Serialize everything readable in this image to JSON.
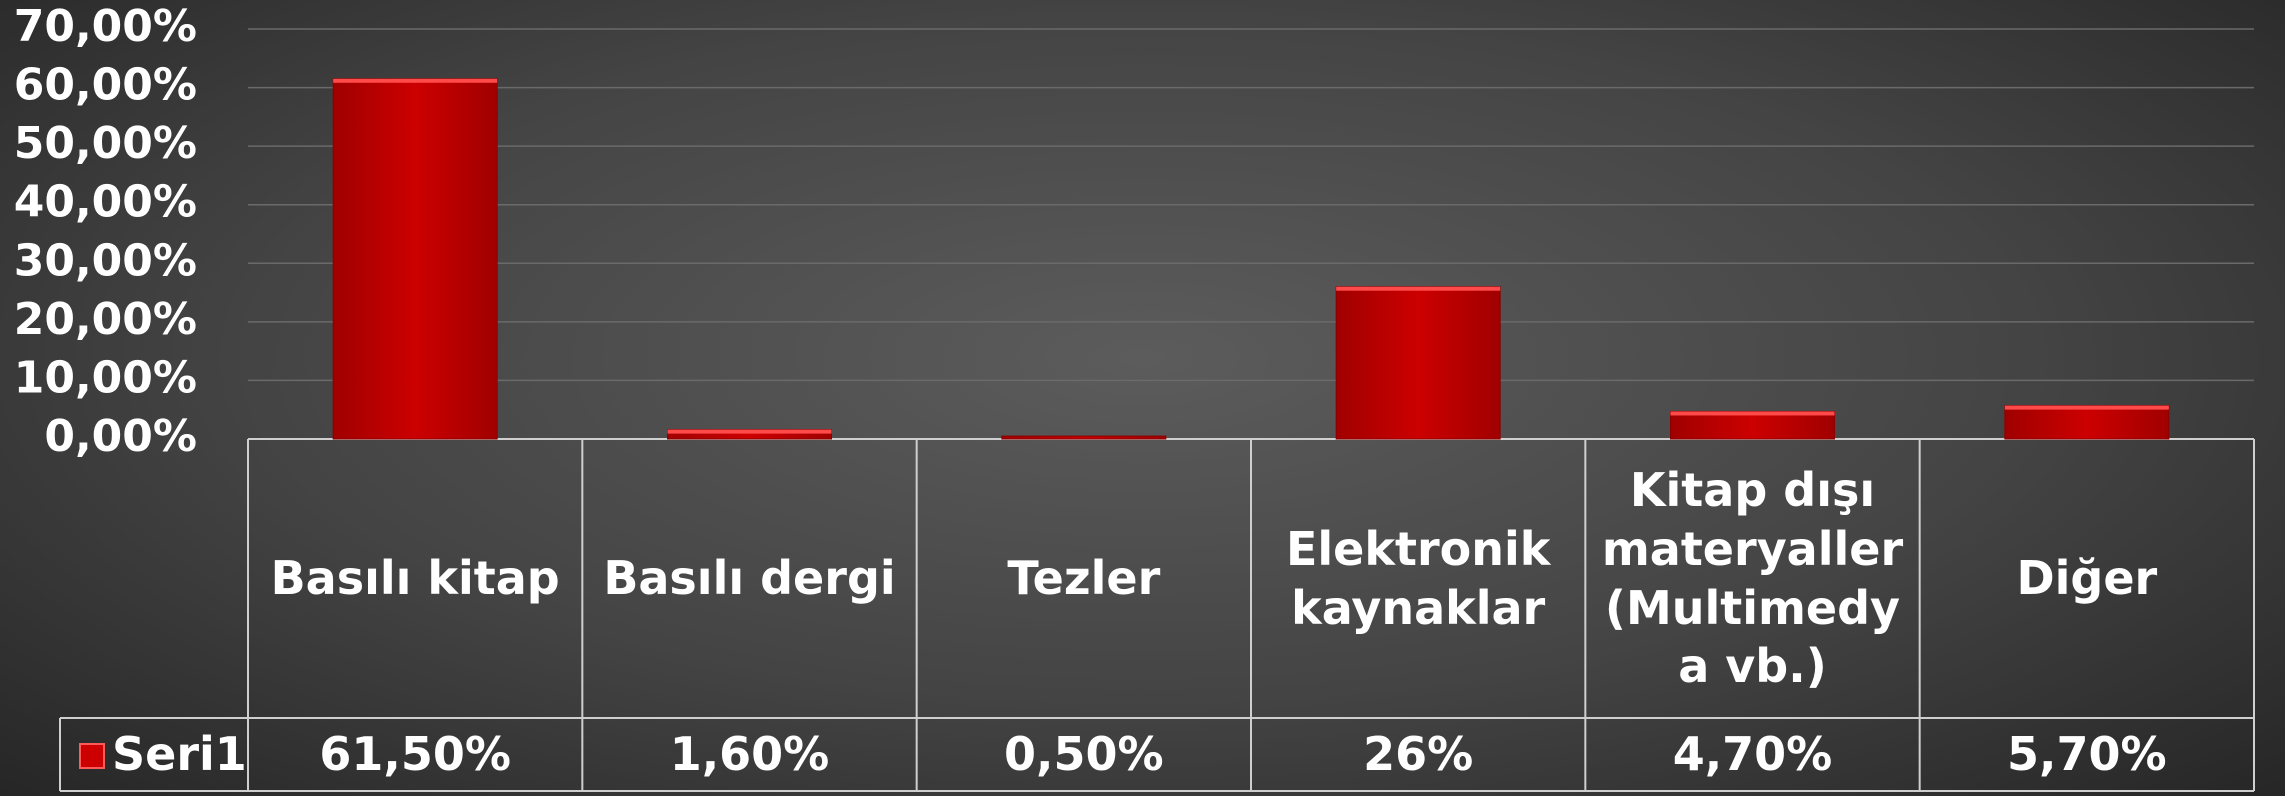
{
  "chart_data": {
    "type": "bar",
    "categories": [
      "Basılı kitap",
      "Basılı dergi",
      "Tezler",
      "Elektronik kaynaklar",
      "Kitap dışı materyaller (Multimedya vb.)",
      "Diğer"
    ],
    "series": [
      {
        "name": "Seri1",
        "color": "#cc0000",
        "values": [
          61.5,
          1.6,
          0.5,
          26,
          4.7,
          5.7
        ],
        "value_labels": [
          "61,50%",
          "1,60%",
          "0,50%",
          "26%",
          "4,70%",
          "5,70%"
        ]
      }
    ],
    "ylim": [
      0,
      70
    ],
    "yticks": [
      {
        "value": 0,
        "label": "0,00%"
      },
      {
        "value": 10,
        "label": "10,00%"
      },
      {
        "value": 20,
        "label": "20,00%"
      },
      {
        "value": 30,
        "label": "30,00%"
      },
      {
        "value": 40,
        "label": "40,00%"
      },
      {
        "value": 50,
        "label": "50,00%"
      },
      {
        "value": 60,
        "label": "60,00%"
      },
      {
        "value": 70,
        "label": "70,00%"
      }
    ],
    "grid": true
  }
}
